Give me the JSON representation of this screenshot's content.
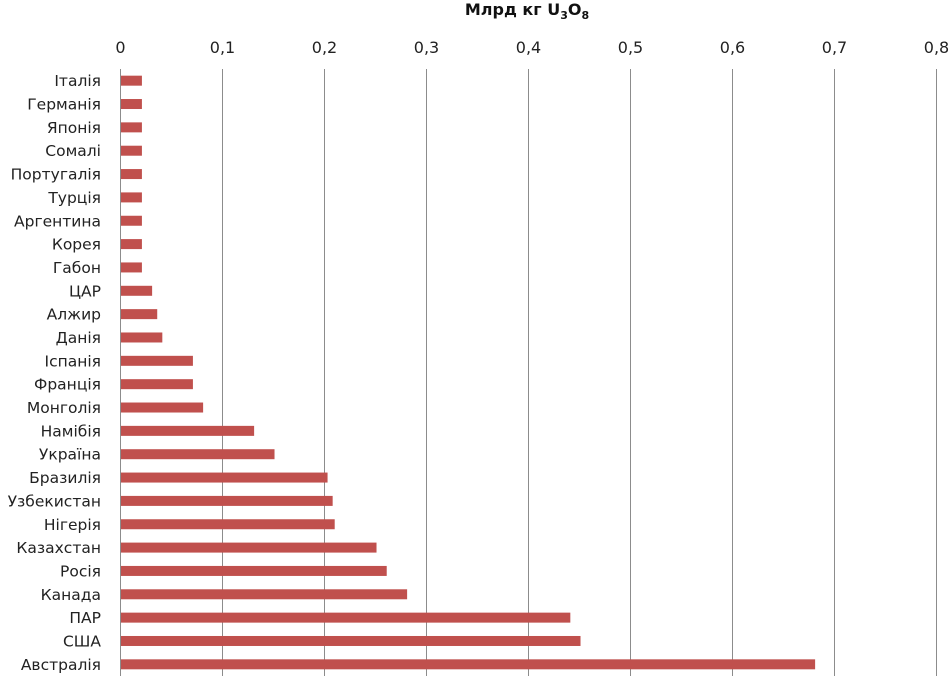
{
  "chart_data": {
    "type": "bar",
    "orientation": "horizontal",
    "title": "",
    "xlabel": {
      "prefix": "Млрд кг U",
      "sub1": "3",
      "mid": "O",
      "sub2": "8"
    },
    "xlabel_position": "top",
    "xlim": [
      0,
      0.8
    ],
    "x_ticks": [
      "0",
      "0,1",
      "0,2",
      "0,3",
      "0,4",
      "0,5",
      "0,6",
      "0,7",
      "0,8"
    ],
    "grid": "vertical",
    "legend": "none",
    "bar_color": "#c0504d",
    "categories": [
      "Італія",
      "Германія",
      "Японія",
      "Сомалі",
      "Португалія",
      "Турція",
      "Аргентина",
      "Корея",
      "Габон",
      "ЦАР",
      "Алжир",
      "Данія",
      "Іспанія",
      "Франція",
      "Монголія",
      "Намібія",
      "Україна",
      "Бразилія",
      "Узбекистан",
      "Нігерія",
      "Казахстан",
      "Росія",
      "Канада",
      "ПАР",
      "США",
      "Австралія"
    ],
    "values": [
      0.021,
      0.021,
      0.021,
      0.021,
      0.021,
      0.021,
      0.021,
      0.021,
      0.021,
      0.031,
      0.036,
      0.041,
      0.071,
      0.071,
      0.081,
      0.131,
      0.151,
      0.203,
      0.208,
      0.21,
      0.251,
      0.261,
      0.281,
      0.441,
      0.451,
      0.681
    ]
  }
}
